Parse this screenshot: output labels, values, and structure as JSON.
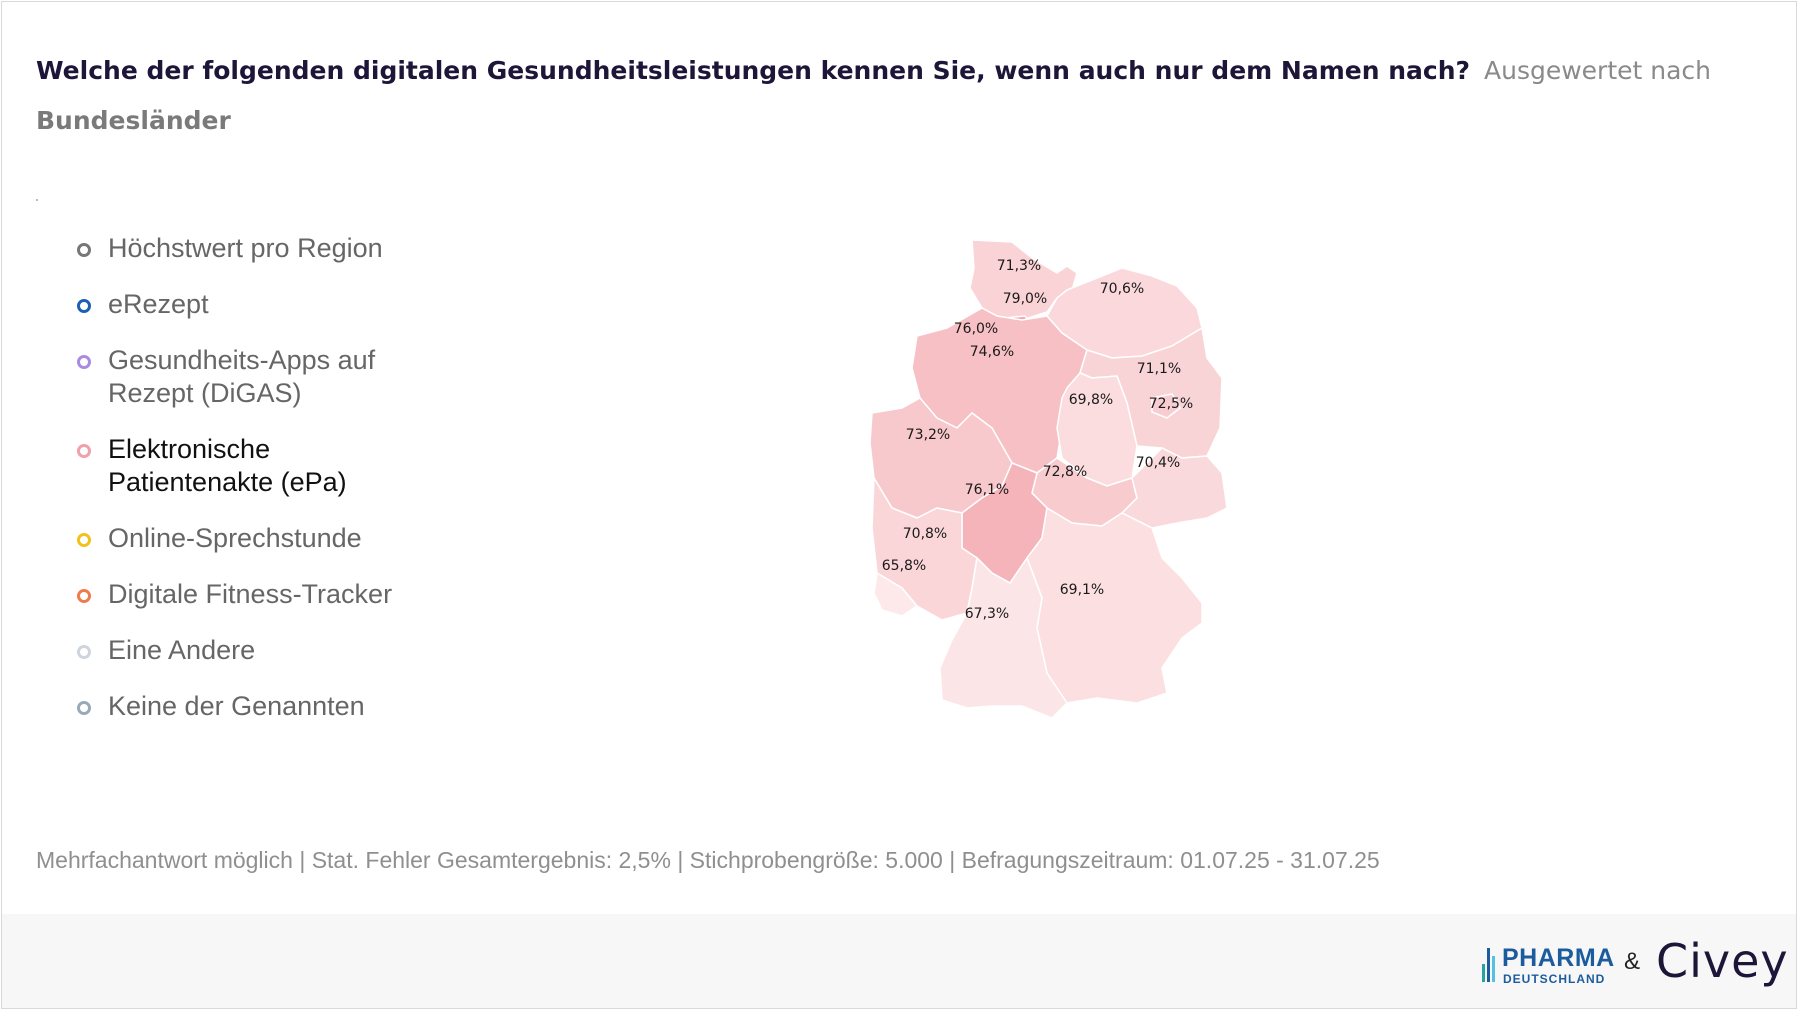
{
  "header": {
    "question": "Welche der folgenden digitalen Gesundheitsleistungen kennen Sie, wenn auch nur dem Namen nach?",
    "subtitle": "Ausgewertet nach",
    "subtitle_line2": "Bundesländer"
  },
  "legend": {
    "items": [
      {
        "label": "Höchstwert pro Region",
        "color": "#777777"
      },
      {
        "label": "eRezept",
        "color": "#1e5fb4"
      },
      {
        "label": "Gesundheits-Apps auf Rezept (DiGAS)",
        "color": "#a98be0"
      },
      {
        "label": "Elektronische Patientenakte (ePa)",
        "color": "#f2a0a8"
      },
      {
        "label": "Online-Sprechstunde",
        "color": "#f3c21a"
      },
      {
        "label": "Digitale Fitness-Tracker",
        "color": "#ef7d4c"
      },
      {
        "label": "Eine Andere",
        "color": "#cfd5dc"
      },
      {
        "label": "Keine der Genannten",
        "color": "#98aab8"
      }
    ],
    "active_index": 3
  },
  "map": {
    "regions": [
      {
        "label": "71,3%",
        "color": "#f9d3d6"
      },
      {
        "label": "79,0%",
        "color": "#f2a9b0"
      },
      {
        "label": "70,6%",
        "color": "#fad8db"
      },
      {
        "label": "76,0%",
        "color": "#f5b8be"
      },
      {
        "label": "74,6%",
        "color": "#f6c0c5"
      },
      {
        "label": "71,1%",
        "color": "#f9d4d7"
      },
      {
        "label": "69,8%",
        "color": "#fbdcdf"
      },
      {
        "label": "72,5%",
        "color": "#f8cdd1"
      },
      {
        "label": "73,2%",
        "color": "#f7c8cc"
      },
      {
        "label": "72,8%",
        "color": "#f8cbcf"
      },
      {
        "label": "70,4%",
        "color": "#fad9dc"
      },
      {
        "label": "76,1%",
        "color": "#f4b4ba"
      },
      {
        "label": "70,8%",
        "color": "#fad6d9"
      },
      {
        "label": "65,8%",
        "color": "#fde9ea"
      },
      {
        "label": "69,1%",
        "color": "#fbdfe1"
      },
      {
        "label": "67,3%",
        "color": "#fce5e7"
      }
    ]
  },
  "footnote": "Mehrfachantwort möglich | Stat. Fehler Gesamtergebnis: 2,5% | Stichprobengröße: 5.000 | Befragungszeitraum: 01.07.25 - 31.07.25",
  "footer": {
    "pharma_logo": "PHARMA",
    "pharma_sub": "DEUTSCHLAND",
    "amp": "&",
    "civey_logo": "Civey",
    "bar_colors": [
      "#2aa3a0",
      "#1b5c9e",
      "#57c0e0"
    ]
  }
}
